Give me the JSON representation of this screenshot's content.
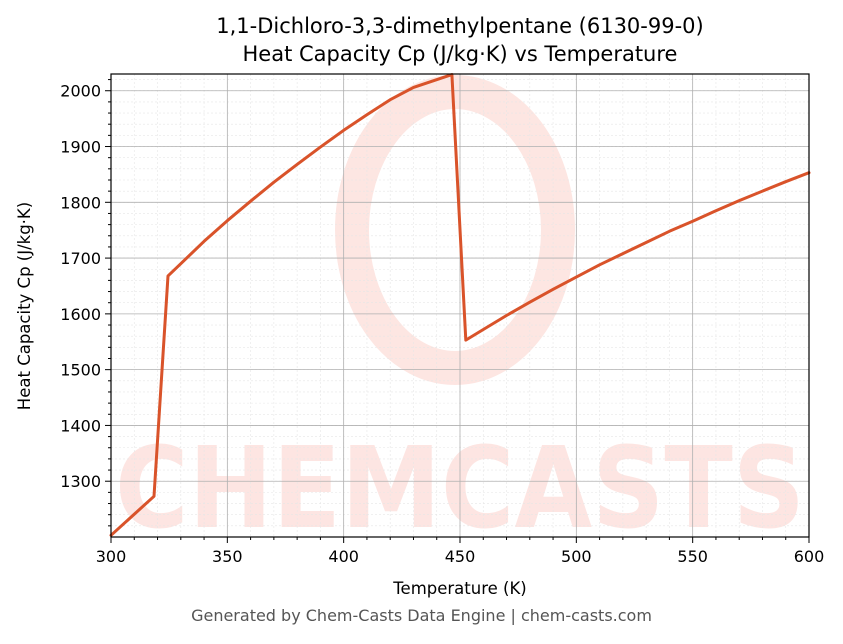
{
  "chart_data": {
    "type": "line",
    "title": "1,1-Dichloro-3,3-dimethylpentane (6130-99-0)",
    "subtitle": "Heat Capacity Cp (J/kg·K) vs Temperature",
    "xlabel": "Temperature (K)",
    "ylabel": "Heat Capacity Cp (J/kg·K)",
    "xlim": [
      300,
      600
    ],
    "ylim": [
      1200,
      2030
    ],
    "xticks": [
      300,
      350,
      400,
      450,
      500,
      550,
      600
    ],
    "yticks": [
      1300,
      1400,
      1500,
      1600,
      1700,
      1800,
      1900,
      2000
    ],
    "grid": true,
    "line_color": "#d9532a",
    "series": [
      {
        "points": [
          [
            300,
            1203
          ],
          [
            318.5,
            1273
          ],
          [
            324.5,
            1668
          ],
          [
            330,
            1690
          ],
          [
            340,
            1730
          ],
          [
            350,
            1767
          ],
          [
            360,
            1802
          ],
          [
            370,
            1836
          ],
          [
            380,
            1868
          ],
          [
            390,
            1899
          ],
          [
            400,
            1929
          ],
          [
            410,
            1957
          ],
          [
            420,
            1984
          ],
          [
            430,
            2006
          ],
          [
            446.5,
            2029
          ],
          [
            452.5,
            1553
          ],
          [
            460,
            1572
          ],
          [
            470,
            1597
          ],
          [
            480,
            1621
          ],
          [
            490,
            1644
          ],
          [
            500,
            1666
          ],
          [
            510,
            1688
          ],
          [
            520,
            1708
          ],
          [
            530,
            1728
          ],
          [
            540,
            1748
          ],
          [
            550,
            1766
          ],
          [
            560,
            1785
          ],
          [
            570,
            1803
          ],
          [
            580,
            1820
          ],
          [
            590,
            1837
          ],
          [
            600,
            1853
          ]
        ]
      }
    ]
  },
  "watermark": {
    "text": "CHEMCASTS",
    "color": "#fde3df"
  },
  "footer": {
    "text": "Generated by Chem-Casts Data Engine | chem-casts.com"
  }
}
